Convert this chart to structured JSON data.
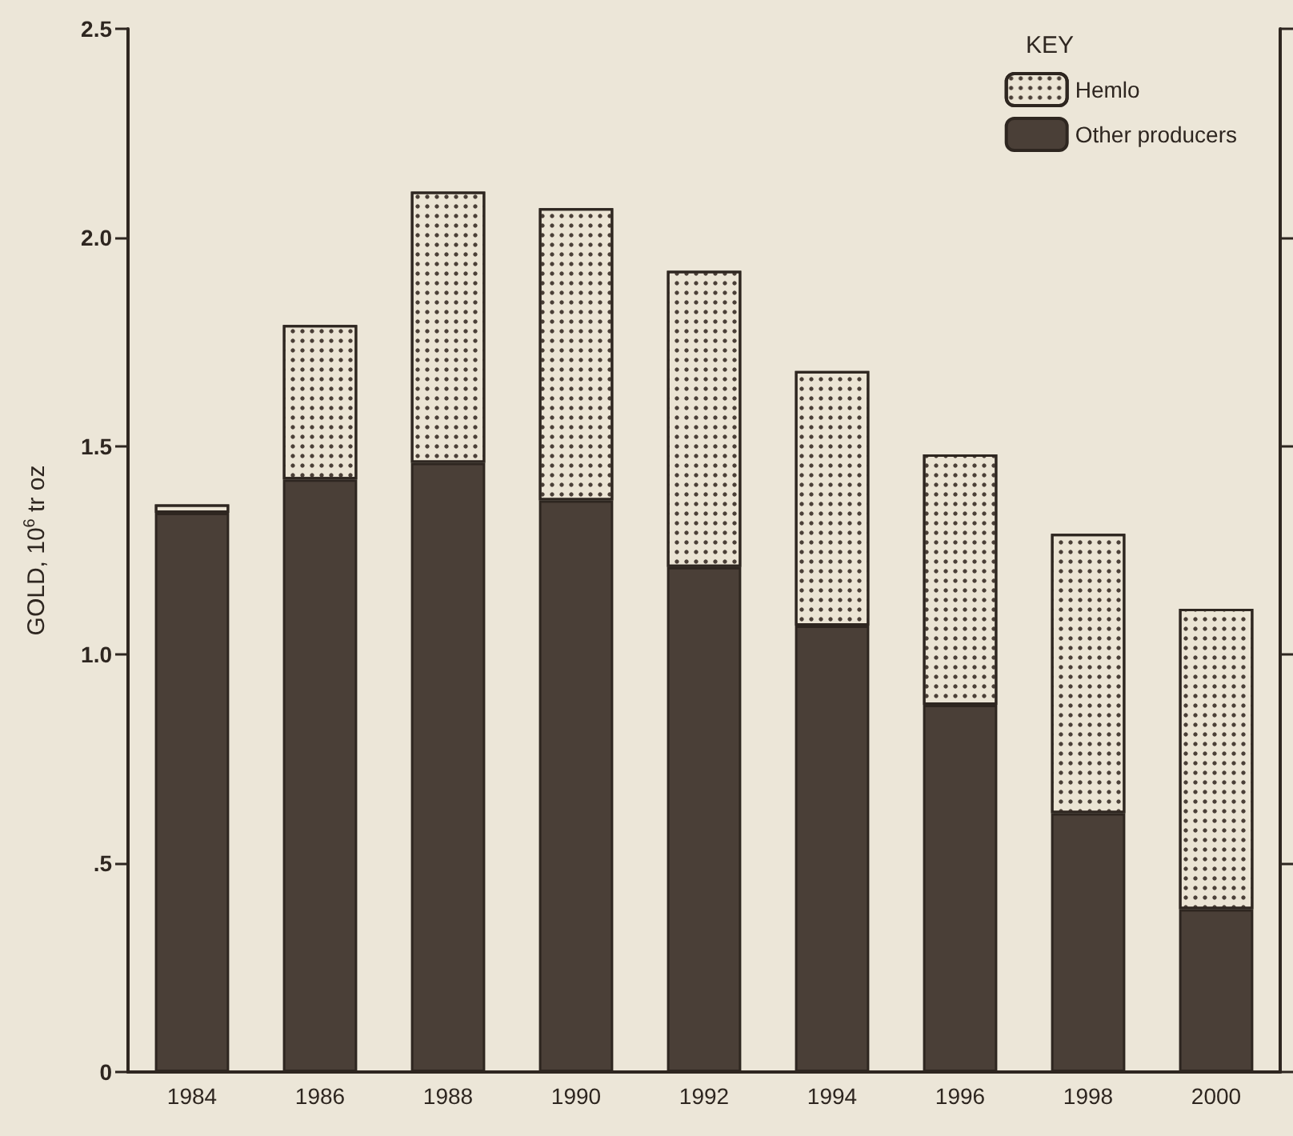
{
  "chart_data": {
    "type": "bar",
    "stacked": true,
    "ylabel": "GOLD, 10$^{6}$ tr oz",
    "legend_title": "KEY",
    "legend": "top right",
    "grid": false,
    "categories": [
      "1984",
      "1986",
      "1988",
      "1990",
      "1992",
      "1994",
      "1996",
      "1998",
      "2000"
    ],
    "series": [
      {
        "name": "Other producers",
        "color": "#4a3f37",
        "values": [
          1.34,
          1.42,
          1.46,
          1.37,
          1.21,
          1.07,
          0.88,
          0.62,
          0.39
        ]
      },
      {
        "name": "Hemlo",
        "color": "#ebe4d4",
        "values": [
          0.02,
          0.37,
          0.65,
          0.7,
          0.71,
          0.61,
          0.6,
          0.67,
          0.72
        ]
      }
    ],
    "ylim": [
      0,
      2.5
    ],
    "yticks": [
      {
        "value": 0,
        "label": "0"
      },
      {
        "value": 0.5,
        "label": ".5"
      },
      {
        "value": 1,
        "label": "1.0"
      },
      {
        "value": 1.5,
        "label": "1.5"
      },
      {
        "value": 2,
        "label": "2.0"
      },
      2.5
    ]
  }
}
